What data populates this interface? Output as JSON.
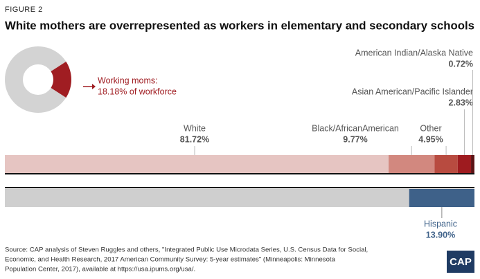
{
  "figure_label": "FIGURE 2",
  "title": "White mothers are overrepresented as workers in elementary and secondary schools",
  "chart_data": [
    {
      "type": "pie",
      "labels": [
        "Working moms:"
      ],
      "values": [
        18.18
      ],
      "value_labels": [
        "18.18% of workforce"
      ],
      "colors": [
        "#a01d22"
      ],
      "rest_color": "#d3d3d3"
    },
    {
      "type": "stacked-bar",
      "align": "left",
      "xlim": [
        0,
        100
      ],
      "series": [
        {
          "name": "White",
          "color": "#e6c5c2",
          "values": [
            81.72
          ],
          "value_labels": [
            "81.72%"
          ]
        },
        {
          "name": "Black/AfricanAmerican",
          "color": "#d2887f",
          "values": [
            9.77
          ],
          "value_labels": [
            "9.77%"
          ]
        },
        {
          "name": "Other",
          "color": "#b84b40",
          "values": [
            4.95
          ],
          "value_labels": [
            "4.95%"
          ]
        },
        {
          "name": "Asian American/Pacific Islander",
          "color": "#9e1b1f",
          "values": [
            2.83
          ],
          "value_labels": [
            "2.83%"
          ]
        },
        {
          "name": "American Indian/Alaska Native",
          "color": "#5a1214",
          "values": [
            0.72
          ],
          "value_labels": [
            "0.72%"
          ]
        }
      ]
    },
    {
      "type": "stacked-bar",
      "align": "right",
      "xlim": [
        0,
        100
      ],
      "series": [
        {
          "name": "Hispanic",
          "color": "#3e6189",
          "values": [
            13.9
          ],
          "value_labels": [
            "13.90%"
          ]
        }
      ]
    }
  ],
  "source_lines": [
    "Source: CAP analysis of Steven Ruggles and others, \"Integrated Public Use Microdata Series, U.S. Census Data for Social,",
    "Economic, and Health Research, 2017 American Community Survey: 5-year estimates\" (Minneapolis: Minnesota",
    "Population Center, 2017), available at https://usa.ipums.org/usa/."
  ],
  "logo": "CAP"
}
